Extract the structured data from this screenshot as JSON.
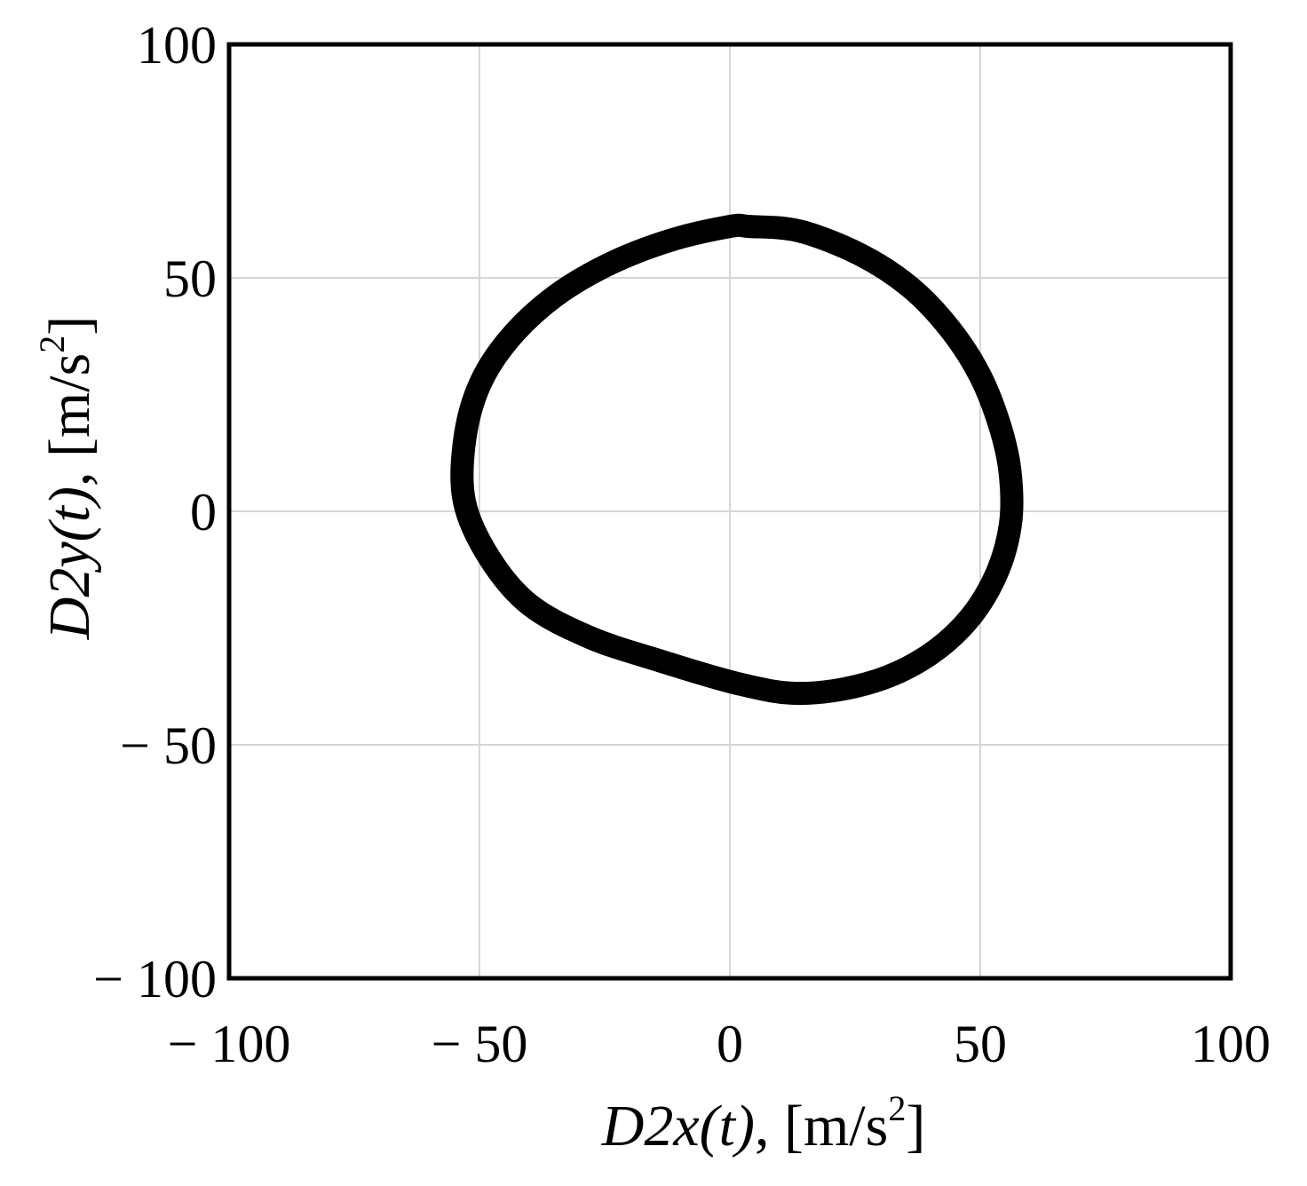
{
  "chart_data": {
    "type": "line",
    "xlim": [
      -100,
      100
    ],
    "ylim": [
      -100,
      100
    ],
    "grid": true,
    "x_ticks": [
      -100,
      -50,
      0,
      50,
      100
    ],
    "y_ticks": [
      -100,
      -50,
      0,
      50,
      100
    ],
    "x_tick_labels": [
      "− 100",
      "− 50",
      "0",
      "50",
      "100"
    ],
    "y_tick_labels": [
      "− 100",
      "− 50",
      "0",
      "50",
      "100"
    ],
    "xlabel": {
      "main": "D2x(t)",
      "sep": ", ",
      "unit_pre": "[m/s",
      "unit_sup": "2",
      "unit_post": "]"
    },
    "ylabel": {
      "main": "D2y(t)",
      "sep": ", ",
      "unit_pre": "[m/s",
      "unit_sup": "2",
      "unit_post": "]"
    },
    "series": [
      {
        "closed": true,
        "x": [
          4,
          14,
          26,
          36,
          44,
          50,
          54,
          56,
          56,
          53,
          47,
          38,
          27,
          14,
          2,
          -14,
          -28,
          -40,
          -48,
          -53,
          -53,
          -50,
          -44,
          -35,
          -24,
          -12,
          0
        ],
        "y": [
          61,
          60,
          55,
          48,
          39,
          29,
          18,
          8,
          -3,
          -14,
          -24,
          -32,
          -37,
          -39,
          -37,
          -32,
          -27,
          -20,
          -10,
          2,
          15,
          27,
          37,
          46,
          53,
          58,
          61
        ]
      }
    ]
  }
}
